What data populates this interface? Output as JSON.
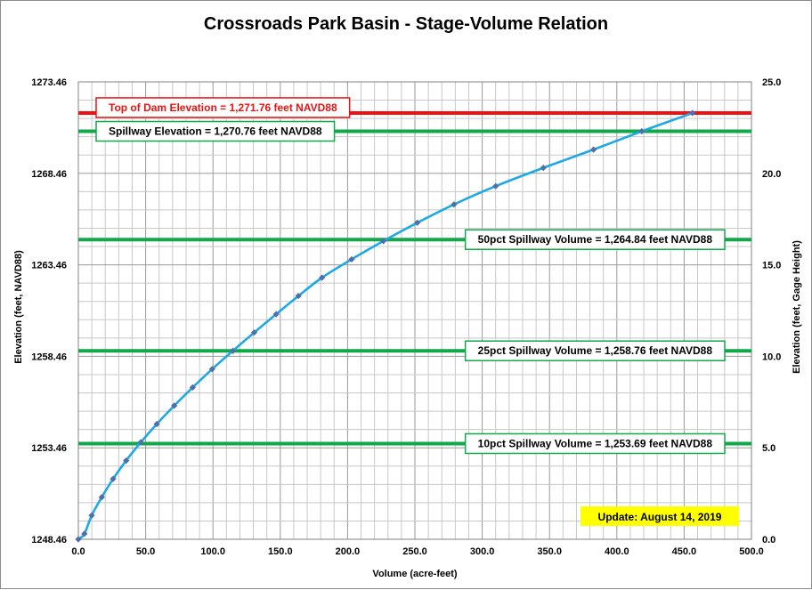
{
  "chart_data": {
    "type": "line",
    "title": "Crossroads Park Basin - Stage-Volume Relation",
    "xlabel": "Volume (acre-feet)",
    "ylabel": "Elevation (feet, NAVD88)",
    "y2label": "Elevation (feet, Gage Height)",
    "xlim": [
      0,
      500
    ],
    "ylim": [
      1248.46,
      1273.46
    ],
    "y2lim": [
      0,
      25
    ],
    "x_ticks": [
      "0.0",
      "50.0",
      "100.0",
      "150.0",
      "200.0",
      "250.0",
      "300.0",
      "350.0",
      "400.0",
      "450.0",
      "500.0"
    ],
    "y_ticks": [
      "1248.46",
      "1253.46",
      "1258.46",
      "1263.46",
      "1268.46",
      "1273.46"
    ],
    "y2_ticks": [
      "0.0",
      "5.0",
      "10.0",
      "15.0",
      "20.0",
      "25.0"
    ],
    "grid": true,
    "series": [
      {
        "color": "#1ea8e4",
        "marker_color": "#4f6fa8",
        "x": [
          0,
          4.5,
          9.9,
          17.4,
          25.8,
          35.5,
          46.4,
          58.3,
          71.2,
          84.9,
          99.4,
          114.8,
          130.6,
          146.9,
          163.5,
          181.0,
          203.0,
          226.6,
          251.8,
          279.0,
          310.0,
          345.4,
          382.7,
          418.5,
          456.1
        ],
        "y": [
          1248.46,
          1248.76,
          1249.76,
          1250.76,
          1251.76,
          1252.76,
          1253.76,
          1254.76,
          1255.76,
          1256.76,
          1257.76,
          1258.76,
          1259.76,
          1260.76,
          1261.76,
          1262.76,
          1263.76,
          1264.76,
          1265.76,
          1266.76,
          1267.76,
          1268.76,
          1269.76,
          1270.76,
          1271.76
        ]
      }
    ],
    "reference_lines": [
      {
        "label": "Top of Dam Elevation = 1,271.76 feet NAVD88",
        "y": 1271.76,
        "color": "#ee1111",
        "label_side": "left"
      },
      {
        "label": "Spillway Elevation = 1,270.76 feet NAVD88",
        "y": 1270.76,
        "color": "#11a84a",
        "label_side": "left"
      },
      {
        "label": "50pct Spillway Volume = 1,264.84 feet NAVD88",
        "y": 1264.84,
        "color": "#11a84a",
        "label_side": "right"
      },
      {
        "label": "25pct Spillway Volume = 1,258.76 feet NAVD88",
        "y": 1258.76,
        "color": "#11a84a",
        "label_side": "right"
      },
      {
        "label": "10pct Spillway Volume = 1,253.69 feet NAVD88",
        "y": 1253.69,
        "color": "#11a84a",
        "label_side": "right"
      }
    ],
    "annotation": {
      "text": "Update: August 14, 2019",
      "background": "#ffff00"
    }
  }
}
